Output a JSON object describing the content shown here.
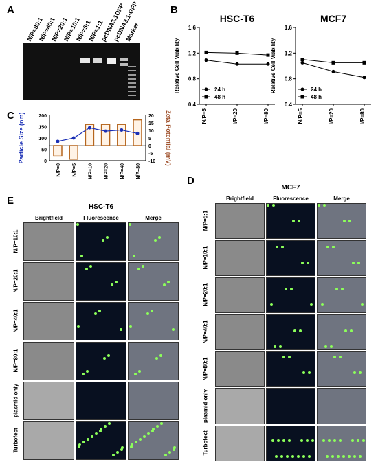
{
  "panels": {
    "A": "A",
    "B": "B",
    "C": "C",
    "D": "D",
    "E": "E"
  },
  "gel": {
    "lanes": [
      "N/P=80:1",
      "N/P=40:1",
      "N/P=20:1",
      "N/P=10:1",
      "N/P=5:1",
      "N/P=1:1",
      "pcDNA3.1GFP",
      "pcDNA3.1-GFP",
      "Marker"
    ]
  },
  "chart_data": [
    {
      "type": "line",
      "title": "HSC-T6",
      "ylabel": "Relative Cell Viability",
      "categories": [
        "N/P=5",
        "N/P=20",
        "N/P=80"
      ],
      "ylim": [
        0.4,
        1.6
      ],
      "yticks": [
        "0.4",
        "0.8",
        "1.2",
        "1.6"
      ],
      "series": [
        {
          "name": "24 h",
          "values": [
            1.09,
            1.03,
            1.03
          ]
        },
        {
          "name": "48 h",
          "values": [
            1.21,
            1.2,
            1.17
          ]
        }
      ],
      "legend": "bottom-left"
    },
    {
      "type": "line",
      "title": "MCF7",
      "ylabel": "Relative Cell Viability",
      "categories": [
        "N/P=5",
        "N/P=20",
        "N/P=80"
      ],
      "ylim": [
        0.4,
        1.6
      ],
      "yticks": [
        "0.4",
        "0.8",
        "1.2",
        "1.6"
      ],
      "series": [
        {
          "name": "24 h",
          "values": [
            1.05,
            0.91,
            0.82
          ]
        },
        {
          "name": "48 h",
          "values": [
            1.1,
            1.05,
            1.05
          ]
        }
      ],
      "legend": "bottom-left"
    },
    {
      "type": "bar",
      "ylabel": "Particle Size (nm)",
      "y2label": "Zeta Potential (mV)",
      "categories": [
        "N/P=0",
        "N/P=5",
        "N/P=10",
        "N/P=20",
        "N/P=40",
        "N/P=80"
      ],
      "ylim": [
        0,
        200
      ],
      "yticks": [
        "0",
        "50",
        "100",
        "150",
        "200"
      ],
      "y2lim": [
        -10,
        20
      ],
      "y2ticks": [
        "-10",
        "-5",
        "0",
        "5",
        "10",
        "15",
        "20"
      ],
      "zeta": [
        -7,
        -9,
        14,
        14,
        14,
        17
      ],
      "size": [
        85,
        100,
        145,
        130,
        135,
        120
      ]
    }
  ],
  "micro_D": {
    "title": "MCF7",
    "cols": [
      "Brightfield",
      "Fluorescence",
      "Merge"
    ],
    "rows": [
      "N/P=5:1",
      "N/P=10:1",
      "N/P=20:1",
      "N/P=40:1",
      "N/P=80:1",
      "plasmid only",
      "Turbofect"
    ]
  },
  "micro_E": {
    "title": "HSC-T6",
    "cols": [
      "Brightfield",
      "Fluorescence",
      "Merge"
    ],
    "rows": [
      "N/P=10:1",
      "N/P=20:1",
      "N/P=40:1",
      "N/P=80:1",
      "plasmid only",
      "Turbofect"
    ]
  }
}
